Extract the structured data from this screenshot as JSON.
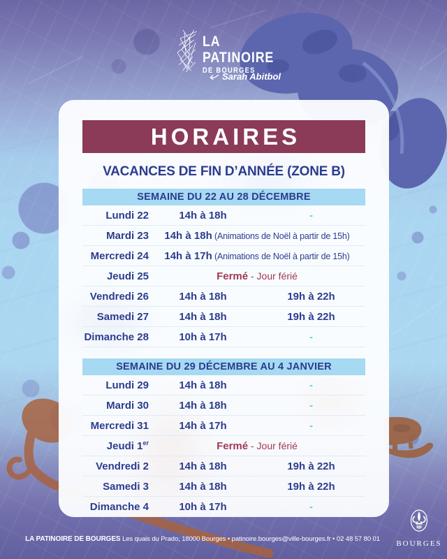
{
  "brand": {
    "line1": "LA",
    "line2": "PATINOIRE",
    "line3": "DE BOURGES",
    "signature": "Sarah Abitbol"
  },
  "poster": {
    "title": "HORAIRES",
    "subtitle": "VACANCES DE FIN D’ANNÉE (ZONE B)"
  },
  "weeks": [
    {
      "header": "SEMAINE DU 22 AU 28 DÉCEMBRE",
      "rows": [
        {
          "day": "Lundi 22",
          "afternoon": "14h à 18h",
          "evening": "-"
        },
        {
          "day": "Mardi 23",
          "afternoon": "14h à 18h",
          "note": "(Animations de Noël à partir de 15h)"
        },
        {
          "day": "Mercredi 24",
          "afternoon": "14h à 17h",
          "note": "(Animations de Noël à partir de 15h)"
        },
        {
          "day": "Jeudi 25",
          "closed": "Fermé",
          "reason": "- Jour férié"
        },
        {
          "day": "Vendredi 26",
          "afternoon": "14h à 18h",
          "evening": "19h à 22h"
        },
        {
          "day": "Samedi 27",
          "afternoon": "14h à 18h",
          "evening": "19h à 22h"
        },
        {
          "day": "Dimanche 28",
          "afternoon": "10h à 17h",
          "evening": "-"
        }
      ]
    },
    {
      "header": "SEMAINE DU 29 DÉCEMBRE AU 4 JANVIER",
      "rows": [
        {
          "day": "Lundi 29",
          "afternoon": "14h à 18h",
          "evening": "-"
        },
        {
          "day": "Mardi 30",
          "afternoon": "14h à 18h",
          "evening": "-"
        },
        {
          "day": "Mercredi 31",
          "afternoon": "14h à 17h",
          "evening": "-"
        },
        {
          "day": "Jeudi 1",
          "day_sup": "er",
          "closed": "Fermé",
          "reason": "- Jour férié"
        },
        {
          "day": "Vendredi 2",
          "afternoon": "14h à 18h",
          "evening": "19h à 22h"
        },
        {
          "day": "Samedi 3",
          "afternoon": "14h à 18h",
          "evening": "19h à 22h"
        },
        {
          "day": "Dimanche 4",
          "afternoon": "10h à 17h",
          "evening": "-"
        }
      ]
    }
  ],
  "footer": {
    "name": "LA PATINOIRE DE BOURGES",
    "details": "Les quais du Prado, 18000 Bourges • patinoire.bourges@ville-bourges.fr • 02 48 57 80 01",
    "city": "BOURGES"
  },
  "colors": {
    "banner_maroon": "#8b3a58",
    "text_blue": "#2b3d8e",
    "week_banner_blue": "#a6d9f2",
    "closed_maroon": "#a03a52",
    "dash_teal": "#5fc9e4"
  }
}
